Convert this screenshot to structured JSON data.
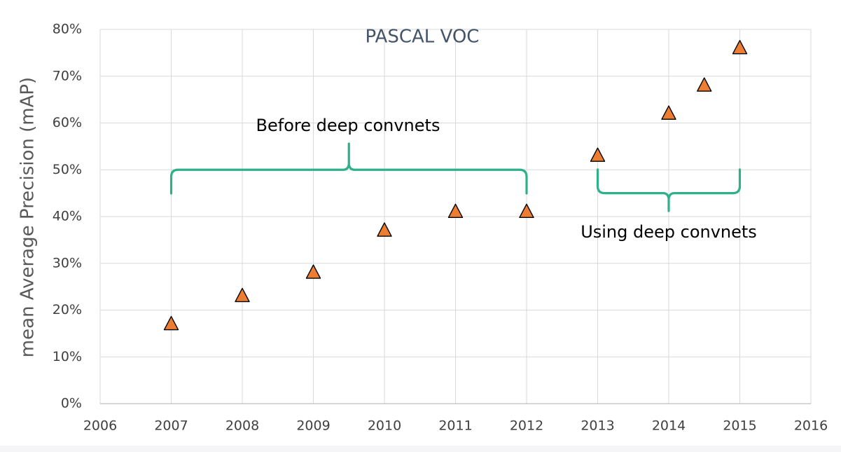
{
  "chart_data": {
    "type": "scatter",
    "title": "PASCAL VOC",
    "xlabel": "",
    "ylabel": "mean Average Precision (mAP)",
    "xlim": [
      2006,
      2016
    ],
    "ylim": [
      0,
      80
    ],
    "x_ticks": [
      "2006",
      "2007",
      "2008",
      "2009",
      "2010",
      "2011",
      "2012",
      "2013",
      "2014",
      "2015",
      "2016"
    ],
    "y_ticks": [
      "0%",
      "10%",
      "20%",
      "30%",
      "40%",
      "50%",
      "60%",
      "70%",
      "80%"
    ],
    "grid": true,
    "marker": "triangle",
    "colors": {
      "marker_fill": "#ed7d31",
      "marker_edge": "#000000",
      "brace": "#2fb08a"
    },
    "points": [
      {
        "x": 2007,
        "y": 17
      },
      {
        "x": 2008,
        "y": 23
      },
      {
        "x": 2009,
        "y": 28
      },
      {
        "x": 2010,
        "y": 37
      },
      {
        "x": 2011,
        "y": 41
      },
      {
        "x": 2012,
        "y": 41
      },
      {
        "x": 2013,
        "y": 53
      },
      {
        "x": 2014,
        "y": 62
      },
      {
        "x": 2014.5,
        "y": 68
      },
      {
        "x": 2015,
        "y": 76
      }
    ],
    "annotations": [
      {
        "text": "Before deep convnets",
        "x_range": [
          2007,
          2012
        ],
        "y": 50
      },
      {
        "text": "Using deep convnets",
        "x_range": [
          2013,
          2015
        ],
        "y": 45
      }
    ]
  }
}
